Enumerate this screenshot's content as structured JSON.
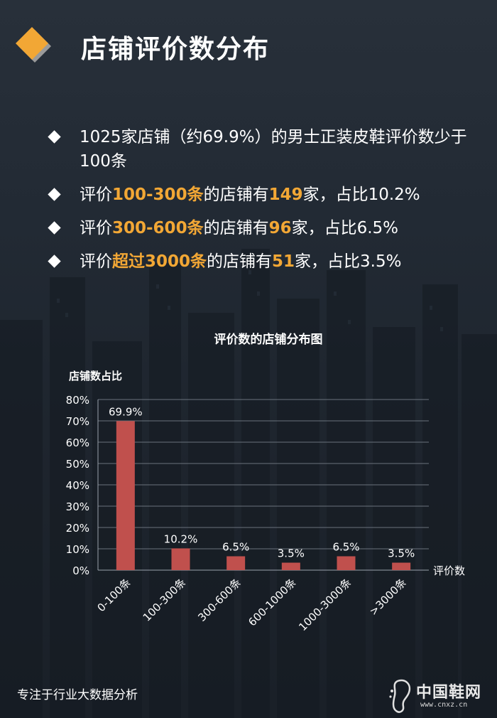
{
  "header": {
    "title": "店铺评价数分布"
  },
  "bullets": [
    {
      "parts": [
        "1025家店铺（约69.9%）的男士正装皮鞋评价数少于100条"
      ]
    },
    {
      "parts": [
        "评价",
        "100-300条",
        "的店铺有",
        "149",
        "家，占比10.2%"
      ]
    },
    {
      "parts": [
        "评价",
        "300-600条",
        "的店铺有",
        "96",
        "家，占比6.5%"
      ]
    },
    {
      "parts": [
        "评价",
        "超过3000条",
        "的店铺有",
        "51",
        "家，占比3.5%"
      ]
    }
  ],
  "chart_data": {
    "type": "bar",
    "title": "评价数的店铺分布图",
    "ylabel": "店铺数占比",
    "xlabel": "评价数",
    "categories": [
      "0-100条",
      "100-300条",
      "300-600条",
      "600-1000条",
      "1000-3000条",
      ">3000条"
    ],
    "values": [
      69.9,
      10.2,
      6.5,
      3.5,
      6.5,
      3.5
    ],
    "value_labels": [
      "69.9%",
      "10.2%",
      "6.5%",
      "3.5%",
      "6.5%",
      "3.5%"
    ],
    "ylim": [
      0,
      80
    ],
    "yticks": [
      "0%",
      "10%",
      "20%",
      "30%",
      "40%",
      "50%",
      "60%",
      "70%",
      "80%"
    ],
    "grid": true,
    "bar_color": "#c0504d"
  },
  "footer": {
    "tagline": "专注于行业大数据分析"
  },
  "watermark": {
    "name": "中国鞋网",
    "url": "www.cnxz.cn"
  },
  "colors": {
    "accent": "#f2a735",
    "logo_gray": "#9a9a9a"
  }
}
